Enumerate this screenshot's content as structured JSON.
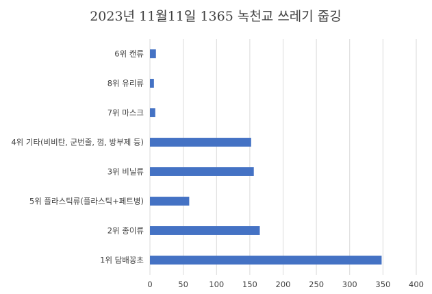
{
  "chart_data": {
    "type": "bar",
    "orientation": "horizontal",
    "title": "2023년 11월11일 1365 녹천교 쓰레기 줍깅",
    "categories": [
      "6위 캔류",
      "8위 유리류",
      "7위 마스크",
      "4위 기타(비비탄, 군번줄, 껌, 방부제 등)",
      "3위 비닐류",
      "5위 플라스틱류(플라스틱+페트병)",
      "2위 종이류",
      "1위 담배꽁초"
    ],
    "values": [
      9,
      6,
      8,
      152,
      156,
      59,
      165,
      348
    ],
    "xlim": [
      0,
      400
    ],
    "xticks": [
      0,
      50,
      100,
      150,
      200,
      250,
      300,
      350,
      400
    ],
    "grid": true,
    "bar_color": "#4472c4"
  }
}
